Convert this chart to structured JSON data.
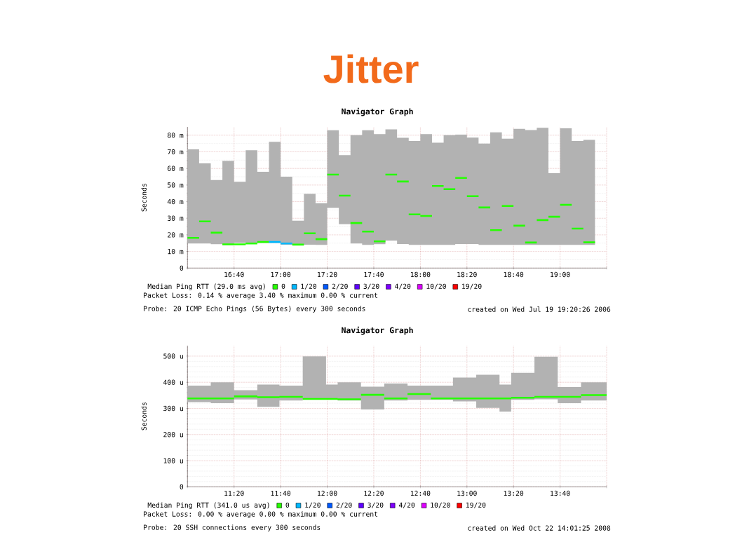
{
  "chart_data": [
    {
      "type": "other",
      "title": "Jitter"
    },
    {
      "type": "step",
      "title": "Navigator Graph",
      "ylabel": "Seconds",
      "legend_title": "Median Ping RTT (29.0 ms avg)",
      "x": [
        16.3333,
        16.4167,
        16.5,
        16.5833,
        16.6667,
        16.75,
        16.8333,
        16.9167,
        17,
        17.0833,
        17.1667,
        17.25,
        17.3333,
        17.4167,
        17.5,
        17.5833,
        17.6667,
        17.75,
        17.8333,
        17.9167,
        18,
        18.0833,
        18.1667,
        18.25,
        18.3333,
        18.4167,
        18.5,
        18.5833,
        18.6667,
        18.75,
        18.8333,
        18.9167,
        19,
        19.0833,
        19.1667,
        19.25
      ],
      "xlim": [
        16.3333,
        19.3333
      ],
      "xticks": [
        {
          "value": 16.3333,
          "label": null
        },
        {
          "value": 16.6667,
          "label": "16:40"
        },
        {
          "value": 17,
          "label": "17:00"
        },
        {
          "value": 17.3333,
          "label": "17:20"
        },
        {
          "value": 17.6667,
          "label": "17:40"
        },
        {
          "value": 18,
          "label": "18:00"
        },
        {
          "value": 18.3333,
          "label": "18:20"
        },
        {
          "value": 18.6667,
          "label": "18:40"
        },
        {
          "value": 19,
          "label": "19:00"
        },
        {
          "value": 19.3333,
          "label": null
        }
      ],
      "ylim": [
        0,
        85
      ],
      "yticks": [
        0,
        {
          "value": 10,
          "label": "10 m"
        },
        {
          "value": 20,
          "label": "20 m"
        },
        {
          "value": 30,
          "label": "30 m"
        },
        {
          "value": 40,
          "label": "40 m"
        },
        {
          "value": 50,
          "label": "50 m"
        },
        {
          "value": 60,
          "label": "60 m"
        },
        {
          "value": 70,
          "label": "70 m"
        },
        {
          "value": 80,
          "label": "80 m"
        }
      ],
      "grid": true,
      "legend": "bottom left",
      "series": [
        {
          "name": "0",
          "color": "#26ff00",
          "values": [
            18.2,
            28.1,
            21.3,
            14.3,
            14.3,
            14.8,
            15.7,
            15.7,
            null,
            14.1,
            20.9,
            17.4,
            56.3,
            43.6,
            27.1,
            22,
            16.1,
            56.3,
            52.1,
            32.3,
            31.4,
            49.4,
            47.5,
            54.3,
            43.3,
            36.5,
            22.8,
            37.4,
            25.5,
            15.4,
            28.9,
            30.9,
            38.1,
            23.8,
            15.5,
            15.5
          ],
          "lower": [
            14.8,
            14.8,
            14.4,
            13.7,
            15.1,
            15.1,
            15.1,
            15.1,
            14.1,
            13.7,
            14.1,
            14,
            36.2,
            26.4,
            14.8,
            14,
            14.4,
            16.5,
            14.5,
            14,
            14,
            14,
            14,
            14.5,
            14.5,
            14,
            14,
            14,
            14,
            14,
            14,
            14,
            14,
            14,
            14,
            14
          ],
          "upper": [
            71.5,
            63,
            53,
            64.5,
            52,
            71,
            58,
            76,
            55,
            28.5,
            44.7,
            39,
            83,
            68,
            80,
            83,
            80.7,
            83.5,
            78.5,
            76.6,
            80.7,
            75.5,
            80,
            80.4,
            78.6,
            75,
            81.7,
            77.9,
            83.8,
            83.1,
            84.5,
            57.1,
            84.2,
            76.6,
            77.2,
            77.2
          ]
        },
        {
          "name": "1/20",
          "color": "#00b8ff",
          "values": [
            null,
            null,
            null,
            null,
            null,
            null,
            null,
            15.7,
            14.8,
            14.8,
            null,
            null,
            null,
            null,
            null,
            null,
            null,
            null,
            null,
            null,
            null,
            null,
            null,
            null,
            null,
            null,
            null,
            null,
            null,
            null,
            null,
            null,
            null,
            null,
            null,
            null
          ]
        },
        {
          "name": "2/20",
          "color": "#0059ff",
          "values": [
            null,
            null,
            null,
            null,
            null,
            null,
            null,
            null,
            null,
            null,
            null,
            null,
            null,
            null,
            null,
            null,
            null,
            null,
            null,
            null,
            null,
            null,
            null,
            null,
            null,
            null,
            null,
            null,
            null,
            null,
            null,
            null,
            null,
            null,
            null,
            null
          ]
        },
        {
          "name": "3/20",
          "color": "#5e00ff",
          "values": [
            null,
            null,
            null,
            null,
            null,
            null,
            null,
            null,
            null,
            null,
            null,
            null,
            null,
            null,
            null,
            null,
            null,
            null,
            null,
            null,
            null,
            null,
            null,
            null,
            null,
            null,
            null,
            null,
            null,
            null,
            null,
            null,
            null,
            null,
            null,
            null
          ]
        },
        {
          "name": "4/20",
          "color": "#7e00ff",
          "values": [
            null,
            null,
            null,
            null,
            null,
            null,
            null,
            null,
            null,
            null,
            null,
            null,
            null,
            null,
            null,
            null,
            null,
            null,
            null,
            null,
            null,
            null,
            null,
            null,
            null,
            null,
            null,
            null,
            null,
            null,
            null,
            null,
            null,
            null,
            null,
            null
          ]
        },
        {
          "name": "10/20",
          "color": "#dd00ff",
          "values": [
            null,
            null,
            null,
            null,
            null,
            null,
            null,
            null,
            null,
            null,
            null,
            null,
            null,
            null,
            null,
            null,
            null,
            null,
            null,
            null,
            null,
            null,
            null,
            null,
            null,
            null,
            null,
            null,
            null,
            null,
            null,
            null,
            null,
            null,
            null,
            null
          ]
        },
        {
          "name": "19/20",
          "color": "#ff0000",
          "values": [
            null,
            null,
            null,
            null,
            null,
            null,
            null,
            null,
            null,
            null,
            null,
            null,
            null,
            null,
            null,
            null,
            null,
            null,
            null,
            null,
            null,
            null,
            null,
            null,
            null,
            null,
            null,
            null,
            null,
            null,
            null,
            null,
            null,
            null,
            null,
            null
          ]
        }
      ],
      "annotations": [
        "Packet Loss: 0.14 % average 3.40 % maximum 0.00 % current",
        "Probe: 20 ICMP Echo Pings (56 Bytes) every 300 seconds",
        "created on Wed Jul 19 19:20:26 2006"
      ]
    },
    {
      "type": "step",
      "title": "Navigator Graph",
      "ylabel": "Seconds",
      "legend_title": "Median Ping RTT (341.0 us avg)",
      "x": [
        11,
        11.1667,
        11.3333,
        11.5,
        11.6583,
        11.825,
        11.9917,
        12.075,
        12.2417,
        12.4083,
        12.575,
        12.7417,
        12.9,
        13.0667,
        13.2333,
        13.3167,
        13.4833,
        13.65,
        13.8167,
        14
      ],
      "xlim": [
        11,
        14
      ],
      "xticks": [
        {
          "value": 11,
          "label": null
        },
        {
          "value": 11.3333,
          "label": "11:20"
        },
        {
          "value": 11.6667,
          "label": "11:40"
        },
        {
          "value": 12,
          "label": "12:00"
        },
        {
          "value": 12.3333,
          "label": "12:20"
        },
        {
          "value": 12.6667,
          "label": "12:40"
        },
        {
          "value": 13,
          "label": "13:00"
        },
        {
          "value": 13.3333,
          "label": "13:20"
        },
        {
          "value": 13.6667,
          "label": "13:40"
        },
        {
          "value": 14,
          "label": null
        }
      ],
      "ylim": [
        0,
        540
      ],
      "yticks": [
        0,
        {
          "value": 100,
          "label": "100 u"
        },
        {
          "value": 200,
          "label": "200 u"
        },
        {
          "value": 300,
          "label": "300 u"
        },
        {
          "value": 400,
          "label": "400 u"
        },
        {
          "value": 500,
          "label": "500 u"
        }
      ],
      "grid": true,
      "legend": "bottom left",
      "series": [
        {
          "name": "0",
          "color": "#26ff00",
          "values": [
            338,
            338,
            346,
            343,
            344,
            336,
            336,
            335,
            352,
            338,
            355,
            338,
            338,
            338,
            338,
            341,
            344,
            344,
            351,
            351
          ],
          "lower": [
            324,
            320,
            334,
            306,
            330,
            335,
            338,
            330,
            296,
            330,
            333,
            333,
            327,
            302,
            288,
            333,
            335,
            320,
            330,
            330
          ],
          "upper": [
            387,
            400,
            370,
            391,
            387,
            499,
            391,
            400,
            383,
            395,
            387,
            387,
            418,
            429,
            391,
            436,
            498,
            382,
            400,
            400
          ]
        },
        {
          "name": "1/20",
          "color": "#00b8ff",
          "values": [
            null,
            null,
            null,
            null,
            null,
            null,
            null,
            null,
            null,
            null,
            null,
            null,
            null,
            null,
            null,
            null,
            null,
            null,
            null,
            null
          ]
        },
        {
          "name": "2/20",
          "color": "#0059ff",
          "values": [
            null,
            null,
            null,
            null,
            null,
            null,
            null,
            null,
            null,
            null,
            null,
            null,
            null,
            null,
            null,
            null,
            null,
            null,
            null,
            null
          ]
        },
        {
          "name": "3/20",
          "color": "#5e00ff",
          "values": [
            null,
            null,
            null,
            null,
            null,
            null,
            null,
            null,
            null,
            null,
            null,
            null,
            null,
            null,
            null,
            null,
            null,
            null,
            null,
            null
          ]
        },
        {
          "name": "4/20",
          "color": "#7e00ff",
          "values": [
            null,
            null,
            null,
            null,
            null,
            null,
            null,
            null,
            null,
            null,
            null,
            null,
            null,
            null,
            null,
            null,
            null,
            null,
            null,
            null
          ]
        },
        {
          "name": "10/20",
          "color": "#dd00ff",
          "values": [
            null,
            null,
            null,
            null,
            null,
            null,
            null,
            null,
            null,
            null,
            null,
            null,
            null,
            null,
            null,
            null,
            null,
            null,
            null,
            null
          ]
        },
        {
          "name": "19/20",
          "color": "#ff0000",
          "values": [
            null,
            null,
            null,
            null,
            null,
            null,
            null,
            null,
            null,
            null,
            null,
            null,
            null,
            null,
            null,
            null,
            null,
            null,
            null,
            null
          ]
        }
      ],
      "annotations": [
        "Packet Loss: 0.00 % average 0.00 % maximum 0.00 % current",
        "Probe: 20 SSH connections every 300 seconds",
        "created on Wed Oct 22 14:01:25 2008"
      ]
    }
  ]
}
